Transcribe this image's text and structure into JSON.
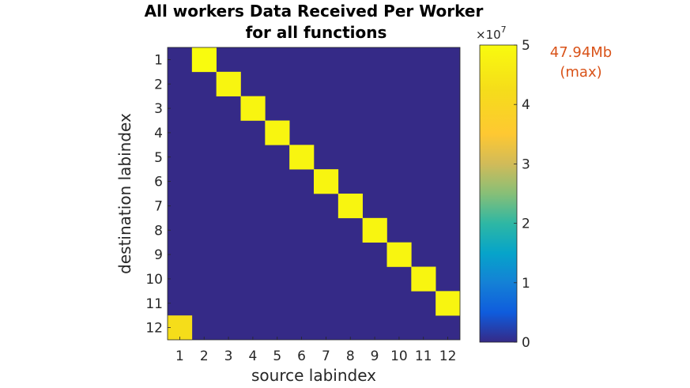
{
  "chart_data": {
    "type": "heatmap",
    "title_line1": "All workers Data Received Per Worker",
    "title_line2": "for all functions",
    "xlabel": "source labindex",
    "ylabel": "destination labindex",
    "x_ticks": [
      "1",
      "2",
      "3",
      "4",
      "5",
      "6",
      "7",
      "8",
      "9",
      "10",
      "11",
      "12"
    ],
    "y_ticks": [
      "1",
      "2",
      "3",
      "4",
      "5",
      "6",
      "7",
      "8",
      "9",
      "10",
      "11",
      "12"
    ],
    "colormap": "parula",
    "clim": [
      0,
      50000000
    ],
    "colorbar_ticks": [
      "0",
      "1",
      "2",
      "3",
      "4",
      "5"
    ],
    "colorbar_exponent_base": "×10",
    "colorbar_exponent_power": "7",
    "max_annotation_value": "47.94Mb",
    "max_annotation_label": "(max)",
    "cells": [
      {
        "src": 2,
        "dst": 1,
        "value": 50270000
      },
      {
        "src": 3,
        "dst": 2,
        "value": 48500000
      },
      {
        "src": 4,
        "dst": 3,
        "value": 48500000
      },
      {
        "src": 5,
        "dst": 4,
        "value": 48500000
      },
      {
        "src": 6,
        "dst": 5,
        "value": 48500000
      },
      {
        "src": 7,
        "dst": 6,
        "value": 48500000
      },
      {
        "src": 8,
        "dst": 7,
        "value": 48500000
      },
      {
        "src": 9,
        "dst": 8,
        "value": 48500000
      },
      {
        "src": 10,
        "dst": 9,
        "value": 48500000
      },
      {
        "src": 11,
        "dst": 10,
        "value": 48500000
      },
      {
        "src": 12,
        "dst": 11,
        "value": 48500000
      },
      {
        "src": 1,
        "dst": 12,
        "value": 42500000
      }
    ],
    "background_value": 0
  }
}
